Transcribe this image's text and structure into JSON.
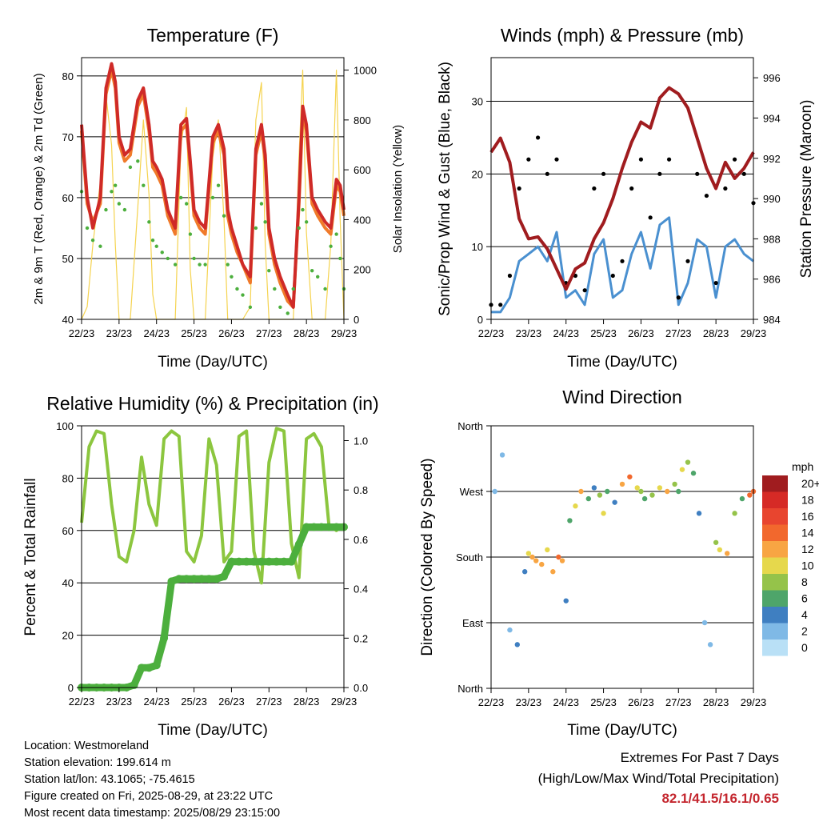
{
  "panels": {
    "temperature": {
      "title": "Temperature (F)",
      "xlabel": "Time (Day/UTC)",
      "ylabel_left": "2m & 9m T (Red, Orange) & 2m Td (Green)",
      "ylabel_right": "Solar Insolation (Yellow)"
    },
    "winds": {
      "title": "Winds (mph) & Pressure (mb)",
      "xlabel": "Time (Day/UTC)",
      "ylabel_left": "Sonic/Prop Wind & Gust (Blue, Black)",
      "ylabel_right": "Station Pressure (Maroon)"
    },
    "humidity": {
      "title": "Relative Humidity (%) & Precipitation (in)",
      "xlabel": "Time (Day/UTC)",
      "ylabel_left": "Percent & Total Rainfall"
    },
    "direction": {
      "title": "Wind Direction",
      "xlabel": "Time (Day/UTC)",
      "ylabel_left": "Direction (Colored By Speed)",
      "legend_title": "mph",
      "legend_labels": [
        "20+",
        "18",
        "16",
        "14",
        "12",
        "10",
        "8",
        "6",
        "4",
        "2",
        "0"
      ],
      "legend_colors": [
        "#a01c1f",
        "#d62a26",
        "#e8452f",
        "#f2682d",
        "#f8a543",
        "#e6d84c",
        "#95c34a",
        "#4ea56a",
        "#3f7fc1",
        "#7fb9e6",
        "#b9e0f6"
      ]
    }
  },
  "info": {
    "location": "Location: Westmoreland",
    "elevation": "Station elevation: 199.614 m",
    "latlon": "Station lat/lon: 43.1065; -75.4615",
    "created": "Figure created on Fri, 2025-08-29, at 23:22 UTC",
    "latest": "Most recent data timestamp: 2025/08/29 23:15:00"
  },
  "extremes": {
    "heading": "Extremes For Past 7 Days",
    "subheading": "(High/Low/Max Wind/Total Precipitation)",
    "values": "82.1/41.5/16.1/0.65"
  },
  "colors": {
    "temp_2m": "#cf2a27",
    "temp_9m": "#f07a2a",
    "dewpoint": "#4caf3d",
    "solar": "#f5d34f",
    "wind": "#4a90d0",
    "gust": "#000000",
    "pressure": "#a01c1f",
    "rh": "#8cc63f",
    "precip": "#4caf3d"
  },
  "chart_data": [
    {
      "id": "temperature",
      "type": "line",
      "x_tick_labels": [
        "22/23",
        "23/23",
        "24/23",
        "25/23",
        "26/23",
        "27/23",
        "28/23",
        "29/23"
      ],
      "x": [
        0,
        0.15,
        0.3,
        0.5,
        0.65,
        0.8,
        0.9,
        1.0,
        1.15,
        1.3,
        1.5,
        1.65,
        1.8,
        1.9,
        2.0,
        2.15,
        2.3,
        2.5,
        2.65,
        2.8,
        2.9,
        3.0,
        3.15,
        3.3,
        3.5,
        3.65,
        3.8,
        3.9,
        4.0,
        4.15,
        4.3,
        4.5,
        4.65,
        4.8,
        4.9,
        5.0,
        5.15,
        5.3,
        5.5,
        5.65,
        5.8,
        5.9,
        6.0,
        6.15,
        6.3,
        6.5,
        6.65,
        6.8,
        6.9,
        7.0
      ],
      "y_left_ticks": [
        40,
        50,
        60,
        70,
        80
      ],
      "ylim_left": [
        40,
        83
      ],
      "y_right_ticks": [
        0,
        200,
        400,
        600,
        800,
        1000
      ],
      "ylim_right": [
        0,
        1050
      ],
      "series": [
        {
          "name": "2m T",
          "axis": "left",
          "values": [
            72,
            60,
            55,
            60,
            78,
            82,
            79,
            70,
            67,
            68,
            76,
            78,
            72,
            66,
            65,
            63,
            58,
            55,
            72,
            73,
            66,
            58,
            56,
            55,
            70,
            72,
            68,
            58,
            55,
            52,
            49,
            47,
            68,
            72,
            67,
            55,
            50,
            47,
            44,
            42,
            60,
            75,
            72,
            60,
            58,
            56,
            55,
            63,
            62,
            58
          ]
        },
        {
          "name": "9m T",
          "axis": "left",
          "values": [
            71,
            59,
            56,
            59,
            77,
            81,
            78,
            69,
            66,
            67,
            75,
            77,
            71,
            65,
            64,
            62,
            57,
            54,
            71,
            72,
            65,
            57,
            55,
            54,
            69,
            71,
            67,
            57,
            54,
            51,
            49,
            46,
            67,
            71,
            66,
            54,
            49,
            46,
            43,
            42,
            59,
            74,
            71,
            59,
            57,
            55,
            54,
            62,
            61,
            57
          ]
        },
        {
          "name": "2m Td",
          "axis": "left",
          "values": [
            61,
            55,
            53,
            52,
            58,
            61,
            62,
            59,
            58,
            65,
            66,
            62,
            56,
            53,
            52,
            51,
            50,
            49,
            60,
            59,
            54,
            50,
            49,
            49,
            60,
            62,
            57,
            49,
            47,
            45,
            44,
            42,
            55,
            59,
            56,
            48,
            45,
            42,
            41,
            45,
            55,
            58,
            56,
            48,
            47,
            45,
            52,
            54,
            50,
            45
          ]
        },
        {
          "name": "Solar",
          "axis": "right",
          "values": [
            0,
            50,
            300,
            550,
            900,
            700,
            300,
            0,
            0,
            0,
            450,
            800,
            500,
            100,
            0,
            0,
            0,
            0,
            700,
            850,
            200,
            0,
            0,
            0,
            650,
            800,
            400,
            0,
            0,
            0,
            0,
            50,
            800,
            950,
            300,
            0,
            0,
            0,
            0,
            0,
            650,
            1000,
            350,
            0,
            0,
            0,
            300,
            1000,
            400,
            0
          ]
        }
      ]
    },
    {
      "id": "winds",
      "type": "line",
      "x_tick_labels": [
        "22/23",
        "23/23",
        "24/23",
        "25/23",
        "26/23",
        "27/23",
        "28/23",
        "29/23"
      ],
      "x": [
        0,
        0.25,
        0.5,
        0.75,
        1.0,
        1.25,
        1.5,
        1.75,
        2.0,
        2.25,
        2.5,
        2.75,
        3.0,
        3.25,
        3.5,
        3.75,
        4.0,
        4.25,
        4.5,
        4.75,
        5.0,
        5.25,
        5.5,
        5.75,
        6.0,
        6.25,
        6.5,
        6.75,
        7.0
      ],
      "y_left_ticks": [
        0,
        10,
        20,
        30
      ],
      "ylim_left": [
        0,
        36
      ],
      "y_right_ticks": [
        984,
        986,
        988,
        990,
        992,
        994,
        996
      ],
      "ylim_right": [
        984,
        997
      ],
      "series": [
        {
          "name": "Wind",
          "axis": "left",
          "values": [
            1,
            1,
            3,
            8,
            9,
            10,
            8,
            12,
            3,
            4,
            2,
            9,
            11,
            3,
            4,
            9,
            12,
            7,
            13,
            14,
            2,
            5,
            11,
            10,
            3,
            10,
            11,
            9,
            8
          ]
        },
        {
          "name": "Gust",
          "axis": "left",
          "values": [
            2,
            2,
            6,
            18,
            22,
            25,
            20,
            22,
            5,
            6,
            4,
            18,
            20,
            6,
            8,
            18,
            22,
            14,
            20,
            22,
            3,
            8,
            20,
            17,
            5,
            18,
            22,
            20,
            16
          ]
        },
        {
          "name": "Pressure",
          "axis": "right",
          "values": [
            992.3,
            993.0,
            991.8,
            989.0,
            988.0,
            988.1,
            987.5,
            986.5,
            985.5,
            986.5,
            986.8,
            988.0,
            988.8,
            990.0,
            991.5,
            992.8,
            993.8,
            993.5,
            995.0,
            995.5,
            995.2,
            994.5,
            993.0,
            991.5,
            990.5,
            991.8,
            991.0,
            991.5,
            992.3
          ]
        }
      ]
    },
    {
      "id": "humidity",
      "type": "line",
      "x_tick_labels": [
        "22/23",
        "23/23",
        "24/23",
        "25/23",
        "26/23",
        "27/23",
        "28/23",
        "29/23"
      ],
      "x": [
        0,
        0.2,
        0.4,
        0.6,
        0.8,
        1.0,
        1.2,
        1.4,
        1.6,
        1.8,
        2.0,
        2.2,
        2.4,
        2.6,
        2.8,
        3.0,
        3.2,
        3.4,
        3.6,
        3.8,
        4.0,
        4.2,
        4.4,
        4.6,
        4.8,
        5.0,
        5.2,
        5.4,
        5.6,
        5.8,
        6.0,
        6.2,
        6.4,
        6.6,
        6.8,
        7.0
      ],
      "y_left_ticks": [
        0,
        20,
        40,
        60,
        80,
        100
      ],
      "ylim_left": [
        0,
        100
      ],
      "y_right_ticks": [
        0.0,
        0.2,
        0.4,
        0.6,
        0.8,
        1.0
      ],
      "ylim_right": [
        0,
        1.06
      ],
      "series": [
        {
          "name": "RH",
          "axis": "left",
          "values": [
            63,
            92,
            98,
            97,
            70,
            50,
            48,
            60,
            88,
            70,
            62,
            95,
            98,
            96,
            52,
            48,
            58,
            95,
            85,
            48,
            52,
            96,
            98,
            52,
            40,
            86,
            99,
            98,
            55,
            42,
            95,
            97,
            92,
            62,
            60,
            62
          ]
        },
        {
          "name": "Precip",
          "axis": "right",
          "values": [
            0,
            0,
            0,
            0,
            0,
            0,
            0,
            0.01,
            0.08,
            0.08,
            0.09,
            0.2,
            0.43,
            0.44,
            0.44,
            0.44,
            0.44,
            0.44,
            0.44,
            0.45,
            0.51,
            0.51,
            0.51,
            0.51,
            0.51,
            0.51,
            0.51,
            0.51,
            0.51,
            0.58,
            0.65,
            0.65,
            0.65,
            0.65,
            0.65,
            0.65
          ]
        }
      ]
    },
    {
      "id": "direction",
      "type": "scatter",
      "x_tick_labels": [
        "22/23",
        "23/23",
        "24/23",
        "25/23",
        "26/23",
        "27/23",
        "28/23",
        "29/23"
      ],
      "y_tick_labels": [
        "North",
        "East",
        "South",
        "West",
        "North"
      ],
      "ylim": [
        0,
        360
      ],
      "x": [
        0.1,
        0.3,
        0.5,
        0.7,
        0.9,
        1.0,
        1.1,
        1.2,
        1.35,
        1.5,
        1.65,
        1.8,
        1.9,
        2.0,
        2.1,
        2.25,
        2.4,
        2.6,
        2.75,
        2.9,
        3.0,
        3.1,
        3.3,
        3.5,
        3.7,
        3.9,
        4.0,
        4.1,
        4.3,
        4.5,
        4.7,
        4.9,
        5.0,
        5.1,
        5.25,
        5.4,
        5.55,
        5.7,
        5.85,
        6.0,
        6.1,
        6.3,
        6.5,
        6.7,
        6.9,
        7.0
      ],
      "y": [
        270,
        320,
        80,
        60,
        160,
        185,
        180,
        175,
        170,
        190,
        160,
        180,
        175,
        120,
        230,
        250,
        270,
        260,
        275,
        265,
        240,
        270,
        255,
        280,
        290,
        275,
        270,
        260,
        265,
        275,
        270,
        280,
        270,
        300,
        310,
        295,
        240,
        90,
        60,
        200,
        190,
        185,
        240,
        260,
        265,
        270
      ],
      "speeds": [
        1,
        1,
        2,
        3,
        4,
        10,
        12,
        11,
        12,
        10,
        11,
        13,
        12,
        4,
        6,
        10,
        12,
        5,
        4,
        8,
        9,
        6,
        4,
        12,
        14,
        10,
        8,
        6,
        7,
        9,
        12,
        8,
        5,
        10,
        8,
        6,
        4,
        2,
        1,
        8,
        10,
        12,
        7,
        6,
        13,
        14
      ]
    }
  ]
}
